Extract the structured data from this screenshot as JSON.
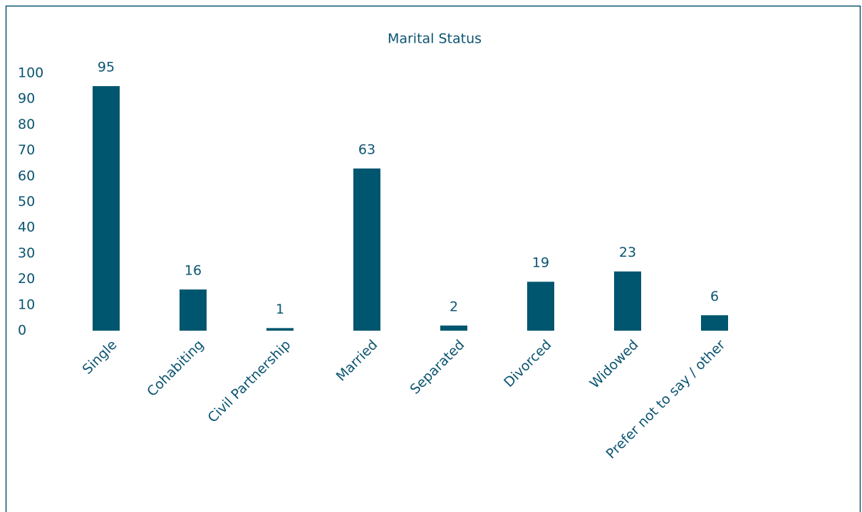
{
  "chart_data": {
    "type": "bar",
    "title": "Marital Status",
    "categories": [
      "Single",
      "Cohabiting",
      "Civil Partnership",
      "Married",
      "Separated",
      "Divorced",
      "Widowed",
      "Prefer not to say / other"
    ],
    "values": [
      95,
      16,
      1,
      63,
      2,
      19,
      23,
      6
    ],
    "color": "#00566f",
    "ylim": [
      0,
      100
    ],
    "yticks": [
      0,
      10,
      20,
      30,
      40,
      50,
      60,
      70,
      80,
      90,
      100
    ],
    "grid": false
  }
}
